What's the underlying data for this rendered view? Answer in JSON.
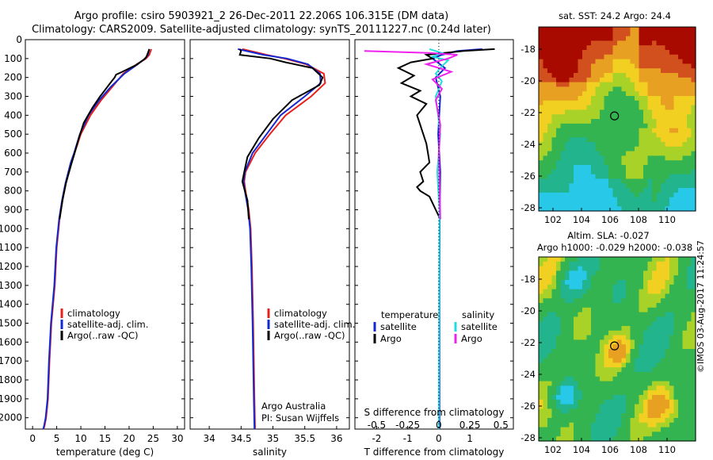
{
  "header": {
    "title_line1": "Argo profile: csiro 5903921_2 26-Dec-2011 22.206S 106.315E (DM data)",
    "title_line2": "Climatology: CARS2009. Satellite-adjusted climatology: synTS_20111227.nc (0.24d later)"
  },
  "footer": {
    "stamp": "©IMOS 03-Aug-2017 11:24:57"
  },
  "colors": {
    "climatology": "#e8201c",
    "satellite": "#1428d2",
    "argo": "#000000",
    "argo_salinity": "#ee22ee",
    "satellite_salinity": "#22dddd"
  },
  "chart_data": [
    {
      "type": "line",
      "panel": "temperature",
      "xlabel": "temperature (deg C)",
      "ylabel": "",
      "xlim": [
        -1.5,
        31.5
      ],
      "ylim": [
        2060,
        0
      ],
      "xticks": [
        0,
        5,
        10,
        15,
        20,
        25,
        30
      ],
      "yticks": [
        0,
        100,
        200,
        300,
        400,
        500,
        600,
        700,
        800,
        900,
        1000,
        1100,
        1200,
        1300,
        1400,
        1500,
        1600,
        1700,
        1800,
        1900,
        2000
      ],
      "legend": {
        "placement": "lower-left",
        "entries": [
          "climatology",
          "satellite-adj. clim.",
          "Argo(..raw -QC)"
        ]
      },
      "series": [
        {
          "name": "climatology",
          "color": "#e8201c",
          "x": [
            24.6,
            24.2,
            23.5,
            21.6,
            18.8,
            16.5,
            14.2,
            12.0,
            10.0,
            8.7,
            8.0,
            6.9,
            6.2,
            5.6,
            5.0,
            4.6,
            3.9,
            3.5,
            3.2,
            2.8,
            2.5,
            2.3
          ],
          "y": [
            50,
            80,
            100,
            130,
            180,
            250,
            320,
            400,
            500,
            600,
            650,
            760,
            850,
            950,
            1100,
            1300,
            1500,
            1700,
            1900,
            2000,
            2040,
            2060
          ]
        },
        {
          "name": "satellite-adj. clim.",
          "color": "#1428d2",
          "x": [
            24.2,
            23.9,
            23.3,
            21.8,
            19.0,
            16.2,
            13.8,
            11.6,
            9.8,
            8.6,
            7.9,
            6.8,
            6.1,
            5.5,
            4.9,
            4.5,
            3.8,
            3.4,
            3.1,
            2.7,
            2.4,
            2.2
          ],
          "y": [
            50,
            80,
            100,
            130,
            180,
            250,
            320,
            400,
            500,
            600,
            650,
            760,
            850,
            950,
            1100,
            1300,
            1500,
            1700,
            1900,
            2000,
            2040,
            2060
          ]
        },
        {
          "name": "Argo(..raw -QC)",
          "color": "#000000",
          "x": [
            24.2,
            23.6,
            23.1,
            21.4,
            18.6,
            17.3,
            17.0,
            16.4,
            14.0,
            12.4,
            10.6,
            9.6,
            8.6,
            8.0,
            6.9,
            6.2,
            5.6
          ],
          "y": [
            50,
            90,
            105,
            135,
            170,
            185,
            200,
            220,
            300,
            360,
            440,
            520,
            610,
            660,
            760,
            850,
            950
          ]
        }
      ]
    },
    {
      "type": "line",
      "panel": "salinity",
      "xlabel": "salinity",
      "ylabel": "",
      "xlim": [
        33.7,
        36.2
      ],
      "ylim": [
        2060,
        0
      ],
      "xticks": [
        34,
        34.5,
        35,
        35.5,
        36
      ],
      "xticklabels": [
        "34",
        "34.5",
        "35",
        "35.5",
        "36"
      ],
      "legend": {
        "placement": "lower-left",
        "entries": [
          "climatology",
          "satellite-adj. clim.",
          "Argo(..raw -QC)"
        ]
      },
      "annotations": [
        "Argo Australia",
        "PI: Susan Wijffels"
      ],
      "series": [
        {
          "name": "climatology",
          "color": "#e8201c",
          "x": [
            34.52,
            34.9,
            35.18,
            35.52,
            35.8,
            35.82,
            35.6,
            35.2,
            34.95,
            34.72,
            34.57,
            34.55,
            34.57,
            34.62,
            34.65,
            34.67,
            34.69,
            34.7,
            34.71,
            34.72
          ],
          "y": [
            50,
            80,
            100,
            130,
            180,
            230,
            300,
            400,
            500,
            600,
            700,
            750,
            800,
            900,
            1000,
            1200,
            1500,
            1700,
            1900,
            2060
          ]
        },
        {
          "name": "satellite-adj. clim.",
          "color": "#1428d2",
          "x": [
            34.45,
            34.85,
            35.22,
            35.55,
            35.74,
            35.75,
            35.5,
            35.12,
            34.9,
            34.68,
            34.56,
            34.54,
            34.56,
            34.61,
            34.64,
            34.66,
            34.68,
            34.69,
            34.7,
            34.71
          ],
          "y": [
            50,
            80,
            100,
            130,
            180,
            230,
            300,
            400,
            500,
            600,
            700,
            750,
            800,
            900,
            1000,
            1200,
            1500,
            1700,
            1900,
            2060
          ]
        },
        {
          "name": "Argo(..raw -QC)",
          "color": "#000000",
          "x": [
            34.48,
            34.5,
            34.48,
            34.96,
            35.2,
            35.62,
            35.78,
            35.73,
            35.3,
            35.0,
            34.78,
            34.6,
            34.55,
            34.52,
            34.56,
            34.6,
            34.62
          ],
          "y": [
            50,
            60,
            80,
            100,
            120,
            150,
            200,
            240,
            320,
            420,
            520,
            620,
            700,
            750,
            800,
            850,
            950
          ]
        }
      ]
    },
    {
      "type": "line",
      "panel": "difference",
      "xlabel": "T difference from climatology",
      "xlabel_top": "S difference from climatology",
      "ylabel": "",
      "xlim": [
        -2.7,
        2.4
      ],
      "ylim": [
        2060,
        0
      ],
      "xticks": [
        -2,
        -1,
        0,
        1
      ],
      "xticklabels_top": [
        "-0.5",
        "-0.25",
        "0",
        "0.25",
        "0.5"
      ],
      "legend": {
        "placement": "lower-center",
        "titles": [
          "temperature",
          "salinity"
        ],
        "entries": [
          "satellite",
          "Argo",
          "satellite",
          "Argo"
        ]
      },
      "series": [
        {
          "name": "satellite",
          "group": "temperature",
          "color": "#1428d2",
          "x": [
            1.4,
            0.6,
            0.1,
            -0.2,
            0.2,
            -0.1,
            0.05,
            -0.02,
            0.05,
            0.03,
            0.02,
            0.02,
            0.02
          ],
          "y": [
            50,
            60,
            80,
            100,
            150,
            200,
            300,
            500,
            700,
            900,
            1300,
            1700,
            2060
          ]
        },
        {
          "name": "Argo",
          "group": "temperature",
          "color": "#000000",
          "x": [
            1.8,
            0.8,
            -0.4,
            -0.2,
            -0.9,
            -1.3,
            -0.8,
            -1.2,
            -0.6,
            -0.9,
            -0.4,
            -0.7,
            -0.6,
            -0.5,
            -0.4,
            -0.35,
            -0.3,
            -0.6,
            -0.5,
            -0.7,
            -0.6,
            -0.3,
            -0.1,
            0.05
          ],
          "y": [
            50,
            60,
            80,
            100,
            120,
            150,
            190,
            230,
            270,
            300,
            340,
            400,
            450,
            500,
            550,
            600,
            650,
            700,
            750,
            780,
            800,
            830,
            900,
            950
          ]
        },
        {
          "name": "satellite",
          "group": "salinity",
          "color": "#22dddd",
          "x": [
            -0.3,
            0.1,
            -0.2,
            0.3,
            0.1,
            -0.1,
            0.1,
            -0.1,
            0.05,
            -0.05,
            0.02,
            0.01,
            0.0
          ],
          "y": [
            50,
            70,
            90,
            110,
            140,
            180,
            220,
            300,
            500,
            700,
            900,
            1300,
            2060
          ]
        },
        {
          "name": "Argo",
          "group": "salinity",
          "color": "#ee22ee",
          "x": [
            -2.4,
            -0.3,
            0.6,
            0.3,
            -0.4,
            0.4,
            -0.2,
            0.1,
            -0.1,
            0.05,
            0.0,
            0.05
          ],
          "y": [
            60,
            70,
            80,
            100,
            130,
            170,
            210,
            260,
            320,
            450,
            600,
            950
          ]
        }
      ]
    },
    {
      "type": "heatmap",
      "panel": "sst-map",
      "title": "sat. SST: 24.2  Argo: 24.4",
      "xlim": [
        101,
        112
      ],
      "ylim": [
        -28.2,
        -16.6
      ],
      "xticks": [
        102,
        104,
        106,
        108,
        110
      ],
      "yticks": [
        -18,
        -20,
        -22,
        -24,
        -26,
        -28
      ],
      "marker": {
        "lon": 106.315,
        "lat": -22.206
      }
    },
    {
      "type": "heatmap",
      "panel": "sla-map",
      "title": "Altim. SLA: -0.027",
      "subtitle": "Argo h1000: -0.029 h2000: -0.038",
      "xlim": [
        101,
        112
      ],
      "ylim": [
        -28.2,
        -16.6
      ],
      "xticks": [
        102,
        104,
        106,
        108,
        110
      ],
      "yticks": [
        -18,
        -20,
        -22,
        -24,
        -26,
        -28
      ],
      "marker": {
        "lon": 106.315,
        "lat": -22.206
      }
    }
  ]
}
